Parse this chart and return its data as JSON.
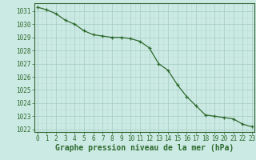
{
  "x": [
    0,
    1,
    2,
    3,
    4,
    5,
    6,
    7,
    8,
    9,
    10,
    11,
    12,
    13,
    14,
    15,
    16,
    17,
    18,
    19,
    20,
    21,
    22,
    23
  ],
  "y": [
    1031.3,
    1031.1,
    1030.8,
    1030.3,
    1030.0,
    1029.5,
    1029.2,
    1029.1,
    1029.0,
    1029.0,
    1028.9,
    1028.7,
    1028.2,
    1027.0,
    1026.5,
    1025.4,
    1024.5,
    1023.8,
    1023.1,
    1023.0,
    1022.9,
    1022.8,
    1022.4,
    1022.2
  ],
  "ylim": [
    1021.8,
    1031.6
  ],
  "yticks": [
    1022,
    1023,
    1024,
    1025,
    1026,
    1027,
    1028,
    1029,
    1030,
    1031
  ],
  "xticks": [
    0,
    1,
    2,
    3,
    4,
    5,
    6,
    7,
    8,
    9,
    10,
    11,
    12,
    13,
    14,
    15,
    16,
    17,
    18,
    19,
    20,
    21,
    22,
    23
  ],
  "line_color": "#2d6a2d",
  "marker": "+",
  "marker_color": "#2d6a2d",
  "bg_color": "#cceae4",
  "grid_major_color": "#aacfc8",
  "grid_minor_color": "#bbddd6",
  "xlabel": "Graphe pression niveau de la mer (hPa)",
  "xlabel_color": "#2d6a2d",
  "tick_color": "#2d6a2d",
  "tick_fontsize": 5.5,
  "xlabel_fontsize": 7.0,
  "spine_color": "#336633"
}
